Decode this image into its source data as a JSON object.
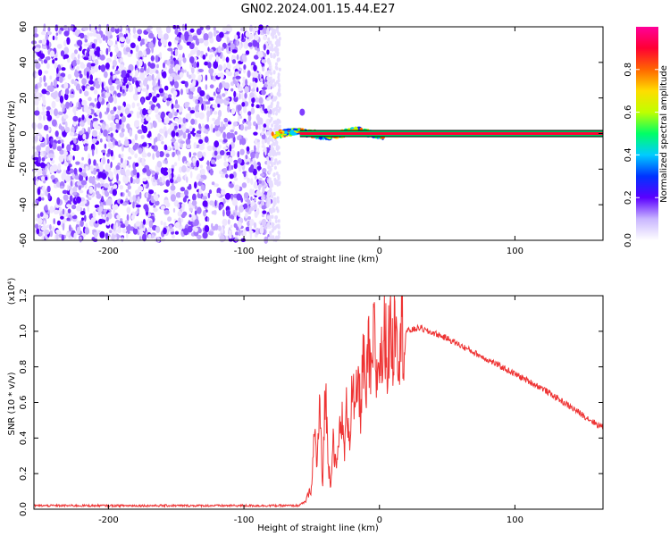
{
  "title": "GN02.2024.001.15.44.E27",
  "chart_data": [
    {
      "type": "heatmap",
      "title": "GN02.2024.001.15.44.E27",
      "xlabel": "Height of straight line (km)",
      "ylabel": "Frequency (Hz)",
      "xlim": [
        -255,
        165
      ],
      "ylim": [
        -60,
        60
      ],
      "x_ticks": [
        -200,
        -100,
        0,
        100
      ],
      "y_ticks": [
        -60,
        -40,
        -20,
        0,
        20,
        40,
        60
      ],
      "noise_region_x": [
        -255,
        -80
      ],
      "ridge_frequency_hz": 0,
      "ridge_x_range": [
        -85,
        165
      ],
      "colorbar": {
        "label": "Normalized spectral amplitude",
        "range": [
          0.0,
          1.0
        ],
        "ticks": [
          0.0,
          0.2,
          0.4,
          0.6,
          0.8
        ],
        "colors": [
          "#ffffff",
          "#c9b6ff",
          "#5a00ff",
          "#0033ff",
          "#00ccff",
          "#00ff66",
          "#bfff00",
          "#ffdd00",
          "#ff6600",
          "#ff0033",
          "#ff0099"
        ]
      }
    },
    {
      "type": "line",
      "xlabel": "Height of straight line (km)",
      "ylabel": "SNR (10 * v/v)",
      "multiplier": "(x10⁴)",
      "xlim": [
        -255,
        165
      ],
      "ylim": [
        0.0,
        1.2
      ],
      "x_ticks": [
        -200,
        -100,
        0,
        100
      ],
      "y_ticks": [
        "0.0",
        "0.2",
        "0.4",
        "0.6",
        "0.8",
        "1.0",
        "1.2"
      ],
      "color": "#ee3333",
      "series": [
        {
          "name": "SNR",
          "x": [
            -255,
            -200,
            -150,
            -100,
            -80,
            -60,
            -55,
            -50,
            -48,
            -46,
            -44,
            -42,
            -40,
            -38,
            -36,
            -34,
            -32,
            -30,
            -28,
            -26,
            -24,
            -22,
            -20,
            -18,
            -16,
            -14,
            -12,
            -10,
            -8,
            -6,
            -4,
            -2,
            0,
            2,
            4,
            6,
            8,
            10,
            12,
            14,
            16,
            18,
            20,
            25,
            30,
            35,
            40,
            50,
            60,
            70,
            80,
            90,
            100,
            110,
            120,
            130,
            140,
            150,
            160,
            165
          ],
          "values": [
            0.02,
            0.02,
            0.02,
            0.02,
            0.02,
            0.02,
            0.04,
            0.12,
            0.45,
            0.25,
            0.6,
            0.1,
            0.72,
            0.28,
            0.15,
            0.42,
            0.2,
            0.38,
            0.55,
            0.3,
            0.6,
            0.4,
            0.7,
            0.48,
            0.75,
            0.55,
            0.85,
            0.6,
            0.9,
            0.68,
            1.0,
            0.72,
            0.88,
            0.82,
            1.05,
            0.8,
            1.1,
            0.85,
            1.2,
            0.9,
            1.05,
            0.95,
            1.0,
            1.01,
            1.02,
            1.0,
            0.99,
            0.96,
            0.92,
            0.88,
            0.84,
            0.8,
            0.76,
            0.72,
            0.68,
            0.63,
            0.58,
            0.53,
            0.48,
            0.46
          ]
        }
      ]
    }
  ]
}
